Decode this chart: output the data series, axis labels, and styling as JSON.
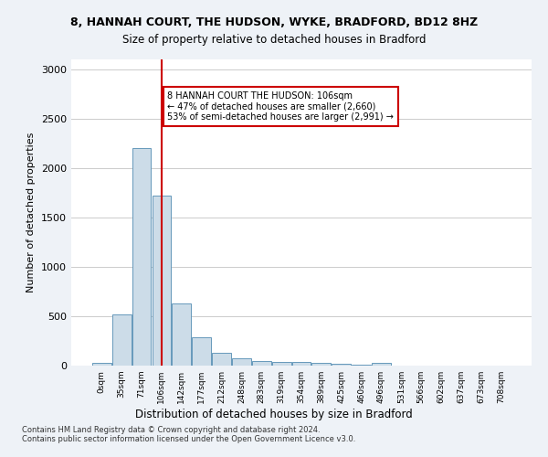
{
  "title1": "8, HANNAH COURT, THE HUDSON, WYKE, BRADFORD, BD12 8HZ",
  "title2": "Size of property relative to detached houses in Bradford",
  "xlabel": "Distribution of detached houses by size in Bradford",
  "ylabel": "Number of detached properties",
  "bin_labels": [
    "0sqm",
    "35sqm",
    "71sqm",
    "106sqm",
    "142sqm",
    "177sqm",
    "212sqm",
    "248sqm",
    "283sqm",
    "319sqm",
    "354sqm",
    "389sqm",
    "425sqm",
    "460sqm",
    "496sqm",
    "531sqm",
    "566sqm",
    "602sqm",
    "637sqm",
    "673sqm",
    "708sqm"
  ],
  "bar_values": [
    30,
    520,
    2200,
    1720,
    630,
    290,
    130,
    75,
    45,
    35,
    35,
    25,
    20,
    5,
    25,
    0,
    0,
    0,
    0,
    0,
    0
  ],
  "bar_color": "#ccdce8",
  "bar_edge_color": "#6699bb",
  "highlight_color": "#cc0000",
  "annotation_text": "8 HANNAH COURT THE HUDSON: 106sqm\n← 47% of detached houses are smaller (2,660)\n53% of semi-detached houses are larger (2,991) →",
  "annotation_box_color": "white",
  "annotation_box_edge": "#cc0000",
  "ylim": [
    0,
    3100
  ],
  "yticks": [
    0,
    500,
    1000,
    1500,
    2000,
    2500,
    3000
  ],
  "footnote": "Contains HM Land Registry data © Crown copyright and database right 2024.\nContains public sector information licensed under the Open Government Licence v3.0.",
  "bg_color": "#eef2f7",
  "plot_bg": "white",
  "grid_color": "#cccccc"
}
